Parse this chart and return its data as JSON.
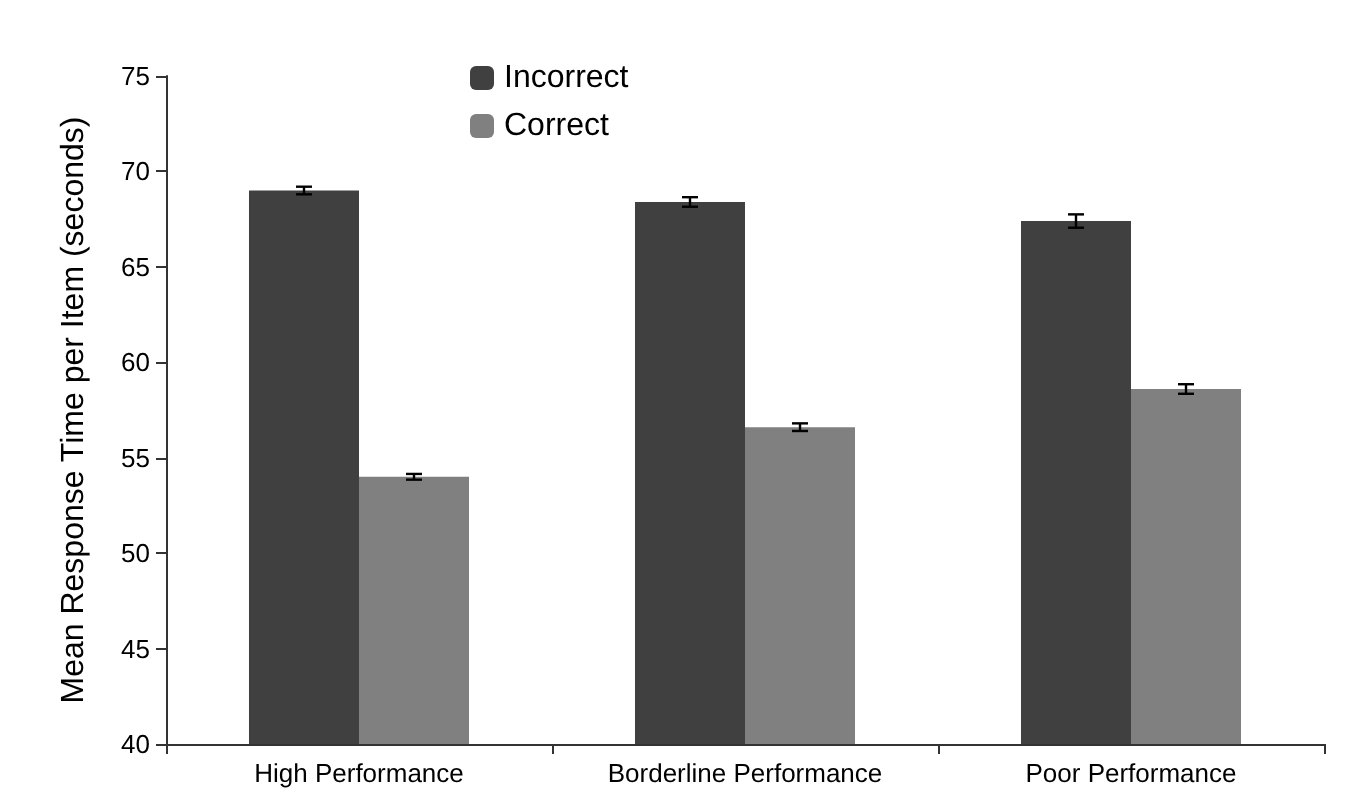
{
  "chart_data": {
    "type": "bar",
    "ylabel": "Mean Response Time per Item (seconds)",
    "categories": [
      "High Performance",
      "Borderline Performance",
      "Poor Performance"
    ],
    "series": [
      {
        "name": "Incorrect",
        "color": "#404040",
        "values": [
          69.0,
          68.4,
          67.4
        ],
        "errors": [
          0.2,
          0.25,
          0.35
        ]
      },
      {
        "name": "Correct",
        "color": "#808080",
        "values": [
          54.0,
          56.6,
          58.6
        ],
        "errors": [
          0.15,
          0.2,
          0.25
        ]
      }
    ],
    "ylim": [
      40,
      75
    ],
    "yticks": [
      40,
      45,
      50,
      55,
      60,
      65,
      70,
      75
    ],
    "grid": false,
    "legend": "top left"
  }
}
